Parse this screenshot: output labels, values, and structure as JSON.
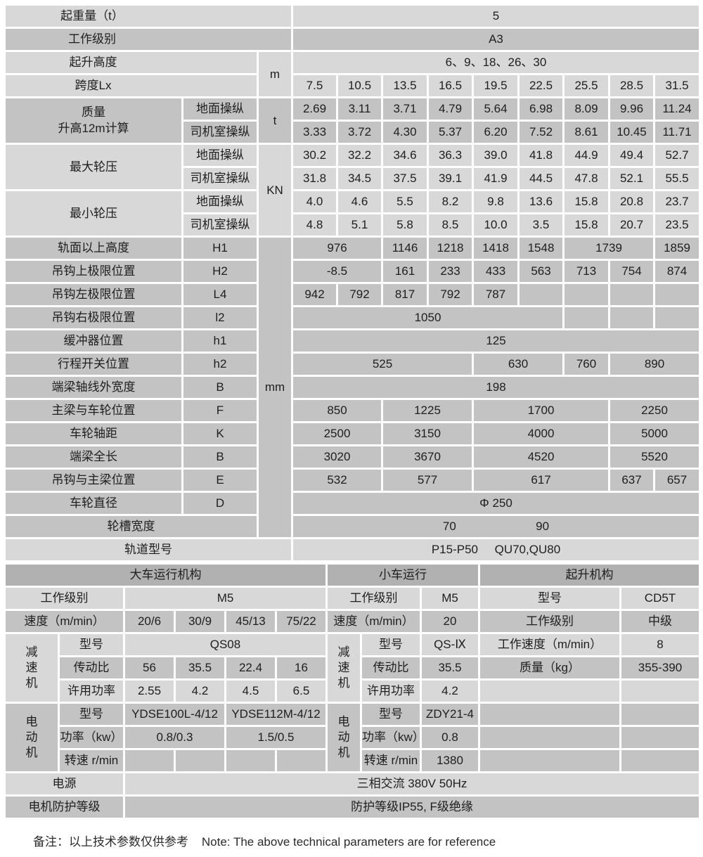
{
  "colors": {
    "light": "#d8d8d9",
    "mid": "#c3c3c4",
    "dark": "#b1b1b2",
    "border": "#ffffff",
    "text": "#1e1e1e"
  },
  "upper_table": {
    "rows": [
      {
        "s": "L",
        "c": [
          {
            "t": "起重量（t）",
            "k": "sh3",
            "cs": 3,
            "n": "row-label-lifting-capacity"
          },
          {
            "t": "5",
            "cs": 9
          }
        ]
      },
      {
        "s": "M",
        "c": [
          {
            "t": "工作级别",
            "k": "sh3",
            "cs": 3,
            "n": "row-label-duty-class"
          },
          {
            "t": "A3",
            "cs": 9
          }
        ]
      },
      {
        "s": "L",
        "c": [
          {
            "t": "起升高度",
            "k": "sh2",
            "cs": 2,
            "n": "row-label-lifting-height"
          },
          {
            "t": "m",
            "rs": 2,
            "n": "unit-m"
          },
          {
            "t": "6、9、18、26、30",
            "cs": 9
          }
        ]
      },
      {
        "s": "L",
        "c": [
          {
            "t": "跨度Lx",
            "k": "sh2",
            "cs": 2,
            "n": "row-label-span-lx"
          },
          {
            "t": "7.5"
          },
          {
            "t": "10.5"
          },
          {
            "t": "13.5"
          },
          {
            "t": "16.5"
          },
          {
            "t": "19.5"
          },
          {
            "t": "22.5"
          },
          {
            "t": "25.5"
          },
          {
            "t": "28.5"
          },
          {
            "t": "31.5"
          }
        ]
      },
      {
        "s": "M",
        "c": [
          {
            "t": "质量\n升高12m计算",
            "k": "ml",
            "rs": 2,
            "n": "row-label-mass"
          },
          {
            "t": "地面操纵"
          },
          {
            "t": "t",
            "rs": 2,
            "n": "unit-t"
          },
          {
            "t": "2.69"
          },
          {
            "t": "3.11"
          },
          {
            "t": "3.71"
          },
          {
            "t": "4.79"
          },
          {
            "t": "5.64"
          },
          {
            "t": "6.98"
          },
          {
            "t": "8.09"
          },
          {
            "t": "9.96"
          },
          {
            "t": "11.24"
          }
        ]
      },
      {
        "s": "M",
        "c": [
          {
            "t": "司机室操纵"
          },
          {
            "t": "3.33"
          },
          {
            "t": "3.72"
          },
          {
            "t": "4.30"
          },
          {
            "t": "5.37"
          },
          {
            "t": "6.20"
          },
          {
            "t": "7.52"
          },
          {
            "t": "8.61"
          },
          {
            "t": "10.45"
          },
          {
            "t": "11.71"
          }
        ]
      },
      {
        "s": "L",
        "c": [
          {
            "t": "最大轮压",
            "rs": 2,
            "n": "row-label-max-wheel-load"
          },
          {
            "t": "地面操纵"
          },
          {
            "t": "KN",
            "rs": 4,
            "n": "unit-kn"
          },
          {
            "t": "30.2"
          },
          {
            "t": "32.2"
          },
          {
            "t": "34.6"
          },
          {
            "t": "36.3"
          },
          {
            "t": "39.0"
          },
          {
            "t": "41.8"
          },
          {
            "t": "44.9"
          },
          {
            "t": "49.4"
          },
          {
            "t": "52.7"
          }
        ]
      },
      {
        "s": "L",
        "c": [
          {
            "t": "司机室操纵"
          },
          {
            "t": "31.8"
          },
          {
            "t": "34.5"
          },
          {
            "t": "37.5"
          },
          {
            "t": "39.1"
          },
          {
            "t": "41.9"
          },
          {
            "t": "44.5"
          },
          {
            "t": "47.8"
          },
          {
            "t": "52.1"
          },
          {
            "t": "55.5"
          }
        ]
      },
      {
        "s": "L",
        "c": [
          {
            "t": "最小轮压",
            "rs": 2,
            "n": "row-label-min-wheel-load"
          },
          {
            "t": "地面操纵"
          },
          {
            "t": "4.0"
          },
          {
            "t": "4.6"
          },
          {
            "t": "5.5"
          },
          {
            "t": "8.2"
          },
          {
            "t": "9.8"
          },
          {
            "t": "13.6"
          },
          {
            "t": "15.8"
          },
          {
            "t": "20.8"
          },
          {
            "t": "23.7"
          }
        ]
      },
      {
        "s": "L",
        "c": [
          {
            "t": "司机室操纵"
          },
          {
            "t": "4.8"
          },
          {
            "t": "5.1"
          },
          {
            "t": "5.8"
          },
          {
            "t": "8.5"
          },
          {
            "t": "10.0"
          },
          {
            "t": "3.5"
          },
          {
            "t": "15.8"
          },
          {
            "t": "20.7"
          },
          {
            "t": "23.5"
          }
        ]
      },
      {
        "s": "M",
        "c": [
          {
            "t": "轨面以上高度",
            "n": "row-label-h1"
          },
          {
            "t": "H1"
          },
          {
            "t": "mm",
            "rs": 13,
            "n": "unit-mm"
          },
          {
            "t": "976",
            "cs": 2
          },
          {
            "t": "1146"
          },
          {
            "t": "1218"
          },
          {
            "t": "1418"
          },
          {
            "t": "1548"
          },
          {
            "t": "1739",
            "cs": 2
          },
          {
            "t": "1859"
          }
        ]
      },
      {
        "s": "M",
        "c": [
          {
            "t": "吊钩上极限位置",
            "n": "row-label-h2"
          },
          {
            "t": "H2"
          },
          {
            "t": "-8.5",
            "cs": 2
          },
          {
            "t": "161"
          },
          {
            "t": "233"
          },
          {
            "t": "433"
          },
          {
            "t": "563"
          },
          {
            "t": "713"
          },
          {
            "t": "754"
          },
          {
            "t": "874"
          }
        ]
      },
      {
        "s": "M",
        "c": [
          {
            "t": "吊钩左极限位置",
            "n": "row-label-l4"
          },
          {
            "t": "L4"
          },
          {
            "t": "942"
          },
          {
            "t": "792"
          },
          {
            "t": "817"
          },
          {
            "t": "792"
          },
          {
            "t": "787"
          },
          {
            "t": ""
          },
          {
            "t": ""
          },
          {
            "t": ""
          },
          {
            "t": ""
          }
        ]
      },
      {
        "s": "M",
        "c": [
          {
            "t": "吊钩右极限位置",
            "n": "row-label-l2"
          },
          {
            "t": "l2"
          },
          {
            "t": "1050",
            "cs": 6
          },
          {
            "t": ""
          },
          {
            "t": ""
          },
          {
            "t": ""
          }
        ]
      },
      {
        "s": "M",
        "c": [
          {
            "t": "缓冲器位置",
            "n": "row-label-buffer"
          },
          {
            "t": "h1"
          },
          {
            "t": "125",
            "cs": 9
          }
        ]
      },
      {
        "s": "M",
        "c": [
          {
            "t": "行程开关位置",
            "n": "row-label-limit-switch"
          },
          {
            "t": "h2"
          },
          {
            "t": "525",
            "cs": 4
          },
          {
            "t": "630",
            "cs": 2
          },
          {
            "t": "760"
          },
          {
            "t": "890",
            "cs": 2
          }
        ]
      },
      {
        "s": "M",
        "c": [
          {
            "t": "端梁轴线外宽度",
            "n": "row-label-end-beam-width"
          },
          {
            "t": "B"
          },
          {
            "t": "198",
            "cs": 9
          }
        ]
      },
      {
        "s": "M",
        "c": [
          {
            "t": "主梁与车轮位置",
            "n": "row-label-girder-wheel"
          },
          {
            "t": "F"
          },
          {
            "t": "850",
            "cs": 2
          },
          {
            "t": "1225",
            "cs": 2
          },
          {
            "t": "1700",
            "cs": 3
          },
          {
            "t": "2250",
            "cs": 2
          }
        ]
      },
      {
        "s": "M",
        "c": [
          {
            "t": "车轮轴距",
            "n": "row-label-wheel-base"
          },
          {
            "t": "K"
          },
          {
            "t": "2500",
            "cs": 2
          },
          {
            "t": "3150",
            "cs": 2
          },
          {
            "t": "4000",
            "cs": 3
          },
          {
            "t": "5000",
            "cs": 2
          }
        ]
      },
      {
        "s": "M",
        "c": [
          {
            "t": "端梁全长",
            "n": "row-label-end-beam-length"
          },
          {
            "t": "B"
          },
          {
            "t": "3020",
            "cs": 2
          },
          {
            "t": "3670",
            "cs": 2
          },
          {
            "t": "4520",
            "cs": 3
          },
          {
            "t": "5520",
            "cs": 2
          }
        ]
      },
      {
        "s": "M",
        "c": [
          {
            "t": "吊钩与主梁位置",
            "n": "row-label-hook-girder"
          },
          {
            "t": "E"
          },
          {
            "t": "532",
            "cs": 2
          },
          {
            "t": "577",
            "cs": 2
          },
          {
            "t": "617",
            "cs": 3
          },
          {
            "t": "637"
          },
          {
            "t": "657"
          }
        ]
      },
      {
        "s": "M",
        "c": [
          {
            "t": "车轮直径",
            "n": "row-label-wheel-diameter"
          },
          {
            "t": "D"
          },
          {
            "t": "Φ 250",
            "cs": 9
          }
        ]
      },
      {
        "s": "M",
        "c": [
          {
            "t": "轮槽宽度",
            "cs": 2,
            "n": "row-label-groove-width"
          },
          {
            "t": "70                        90",
            "k": "pre",
            "cs": 9
          }
        ]
      },
      {
        "s": "L",
        "c": [
          {
            "t": "轨道型号",
            "cs": 3,
            "n": "row-label-rail-type"
          },
          {
            "t": "P15-P50     QU70,QU80",
            "k": "pre",
            "cs": 9
          }
        ]
      }
    ]
  },
  "lower_table": {
    "rows": [
      {
        "s": "D",
        "c": [
          {
            "t": "大车运行机构",
            "cs": 6,
            "n": "section-header-crane-travel"
          },
          {
            "t": "小车运行",
            "cs": 3,
            "n": "section-header-trolley-travel"
          },
          {
            "t": "起升机构",
            "cs": 2,
            "n": "section-header-hoisting"
          }
        ]
      },
      {
        "s": "L",
        "c": [
          {
            "t": "工作级别",
            "cs": 2
          },
          {
            "t": "M5",
            "cs": 4
          },
          {
            "t": "工作级别",
            "cs": 2
          },
          {
            "t": "M5"
          },
          {
            "t": "型号"
          },
          {
            "t": "CD5T"
          }
        ]
      },
      {
        "s": "M",
        "c": [
          {
            "t": "速度（m/min）",
            "cs": 2
          },
          {
            "t": "20/6"
          },
          {
            "t": "30/9"
          },
          {
            "t": "45/13"
          },
          {
            "t": "75/22"
          },
          {
            "t": "速度（m/min）",
            "cs": 2
          },
          {
            "t": "20"
          },
          {
            "t": "工作级别"
          },
          {
            "t": "中级"
          }
        ]
      },
      {
        "s": "L",
        "c": [
          {
            "t": "减\n速\n机",
            "k": "vt",
            "rs": 3,
            "n": "group-label-reducer"
          },
          {
            "t": "型号"
          },
          {
            "t": "QS08",
            "cs": 4
          },
          {
            "t": "减\n速\n机",
            "k": "vt",
            "rs": 3,
            "n": "group-label-reducer"
          },
          {
            "t": "型号"
          },
          {
            "t": "QS-Ⅸ"
          },
          {
            "t": "工作速度（m/min）"
          },
          {
            "t": "8"
          }
        ]
      },
      {
        "s": "M",
        "c": [
          {
            "t": "传动比"
          },
          {
            "t": "56"
          },
          {
            "t": "35.5"
          },
          {
            "t": "22.4"
          },
          {
            "t": "16"
          },
          {
            "t": "传动比"
          },
          {
            "t": "35.5"
          },
          {
            "t": "质量（kg）"
          },
          {
            "t": "355-390"
          }
        ]
      },
      {
        "s": "L",
        "c": [
          {
            "t": "许用功率"
          },
          {
            "t": "2.55"
          },
          {
            "t": "4.2"
          },
          {
            "t": "4.5"
          },
          {
            "t": "6.5"
          },
          {
            "t": "许用功率"
          },
          {
            "t": "4.2"
          },
          {
            "t": ""
          },
          {
            "t": ""
          }
        ]
      },
      {
        "s": "M",
        "c": [
          {
            "t": "电\n动\n机",
            "k": "vt",
            "rs": 3,
            "n": "group-label-motor"
          },
          {
            "t": "型号"
          },
          {
            "t": "YDSE100L-4/12",
            "cs": 2
          },
          {
            "t": "YDSE112M-4/12",
            "cs": 2
          },
          {
            "t": "电\n动\n机",
            "k": "vt",
            "rs": 3,
            "n": "group-label-motor"
          },
          {
            "t": "型号"
          },
          {
            "t": "ZDY21-4"
          },
          {
            "t": ""
          },
          {
            "t": ""
          }
        ]
      },
      {
        "s": "M",
        "c": [
          {
            "t": "功率（kw）"
          },
          {
            "t": "0.8/0.3",
            "cs": 2
          },
          {
            "t": "1.5/0.5",
            "cs": 2
          },
          {
            "t": "功率（kw）"
          },
          {
            "t": "0.8"
          },
          {
            "t": ""
          },
          {
            "t": ""
          }
        ]
      },
      {
        "s": "M",
        "c": [
          {
            "t": "转速 r/min"
          },
          {
            "t": ""
          },
          {
            "t": ""
          },
          {
            "t": ""
          },
          {
            "t": ""
          },
          {
            "t": "转速 r/min"
          },
          {
            "t": "1380"
          },
          {
            "t": ""
          },
          {
            "t": ""
          }
        ]
      },
      {
        "s": "L",
        "c": [
          {
            "t": "电源",
            "cs": 2,
            "n": "row-label-power-supply"
          },
          {
            "t": "三相交流  380V  50Hz",
            "cs": 9
          }
        ]
      },
      {
        "s": "M",
        "c": [
          {
            "t": "电机防护等级",
            "cs": 2,
            "n": "row-label-motor-protection"
          },
          {
            "t": "防护等级IP55, F级绝缘",
            "cs": 9
          }
        ]
      }
    ]
  },
  "note": {
    "text": "备注：以上技术参数仅供参考    Note: The above technical parameters are for reference"
  }
}
